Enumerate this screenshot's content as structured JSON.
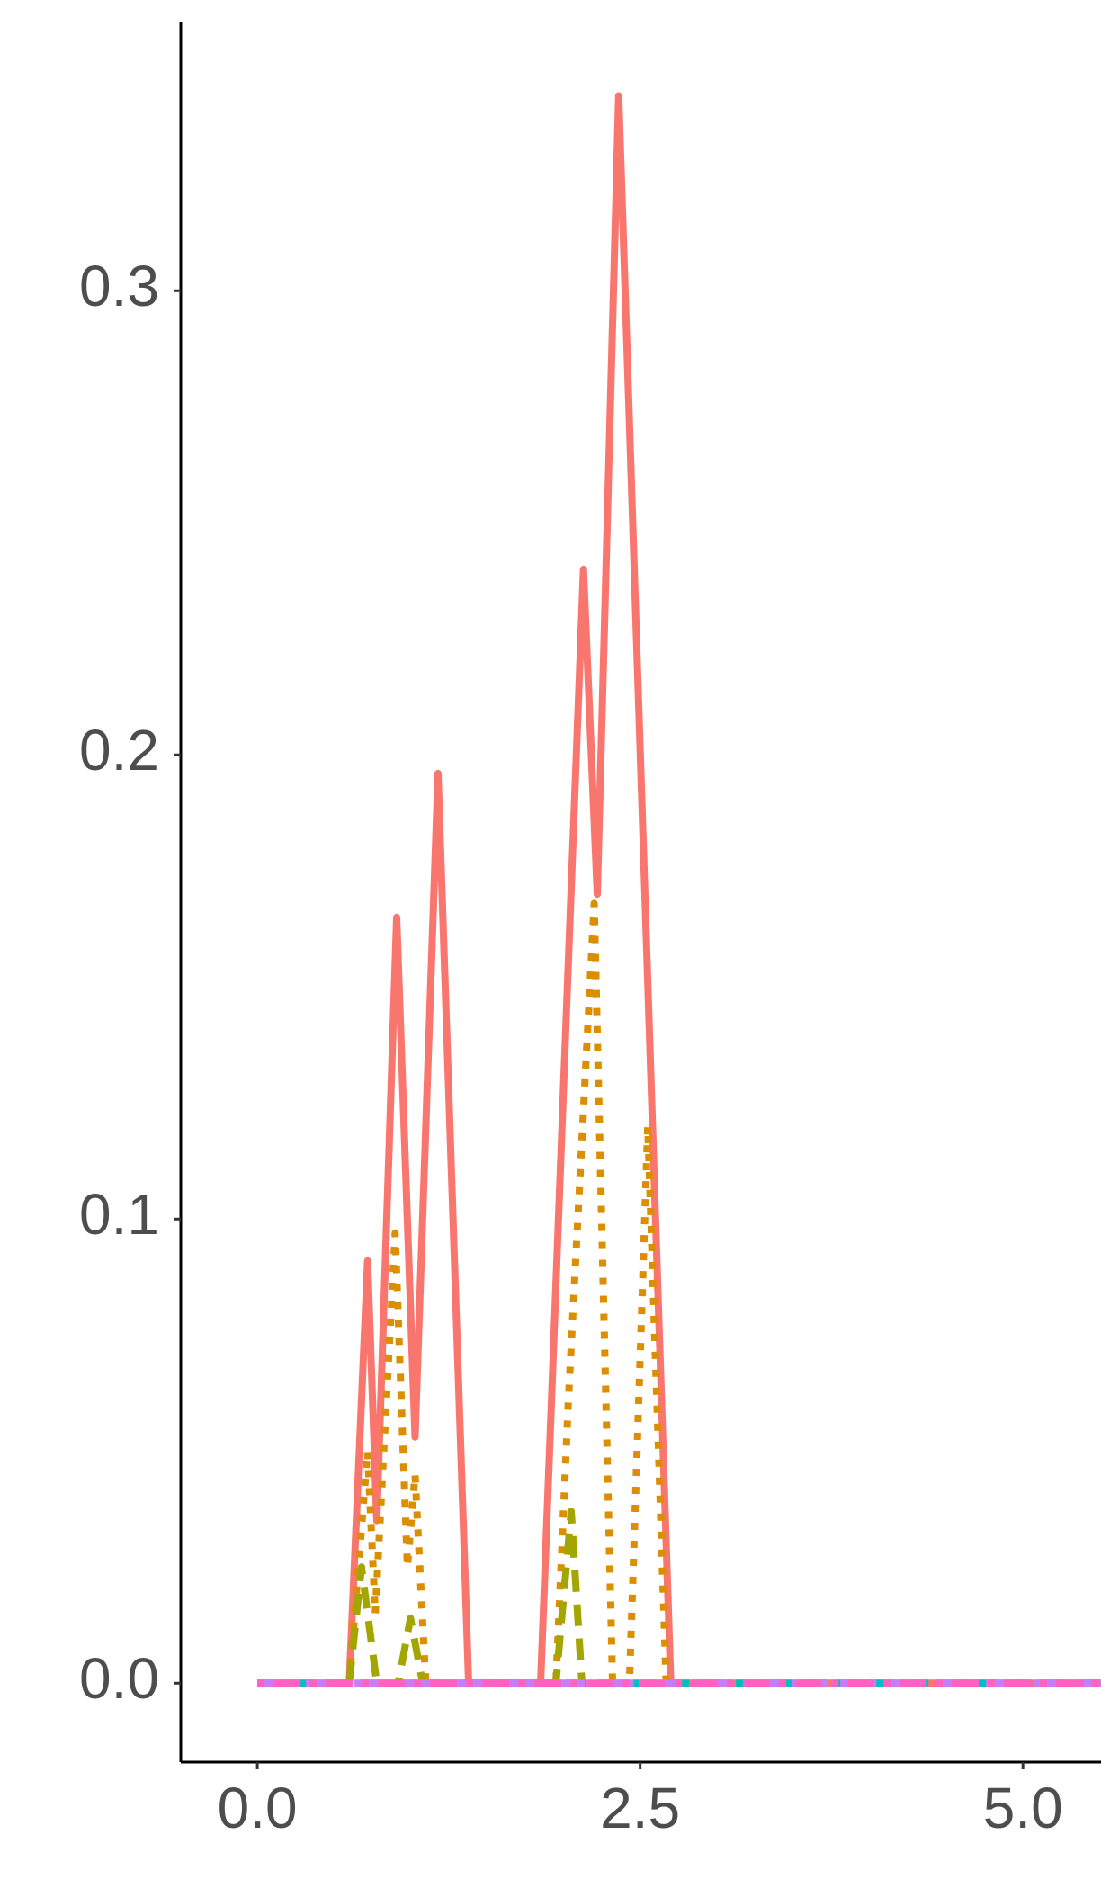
{
  "chart_data": {
    "type": "line",
    "xlim": [
      -0.5,
      5.51
    ],
    "ylim": [
      -0.017,
      0.358
    ],
    "xticks": [
      {
        "value": 0,
        "label": "0.0"
      },
      2.5,
      {
        "value": 5,
        "label": "5.0"
      }
    ],
    "yticks": [
      {
        "value": 0,
        "label": "0.0"
      },
      0.1,
      0.2,
      0.3
    ],
    "series": [
      {
        "color": "#F8766D",
        "dash": "solid",
        "x": [
          0,
          0.6,
          0.72,
          0.78,
          0.91,
          1.03,
          1.18,
          1.38,
          1.85,
          2.13,
          2.22,
          2.36,
          2.7,
          5.51
        ],
        "values": [
          0,
          0,
          0.091,
          0.035,
          0.165,
          0.053,
          0.196,
          0,
          0,
          0.24,
          0.17,
          0.342,
          0,
          0
        ]
      },
      {
        "color": "#DB8E00",
        "dash": "dotted",
        "x": [
          0.6,
          0.72,
          0.77,
          0.9,
          0.98,
          1.03,
          1.1,
          1.95,
          2.03,
          2.2,
          2.32,
          2.43,
          2.55,
          2.67
        ],
        "values": [
          0,
          0.05,
          0.015,
          0.097,
          0.025,
          0.045,
          0,
          0,
          0.06,
          0.168,
          0,
          0,
          0.12,
          0
        ]
      },
      {
        "color": "#A3A500",
        "dash": "dashed",
        "x": [
          0.6,
          0.68,
          0.78,
          0.92,
          1.0,
          1.08,
          1.95,
          2.05,
          2.12
        ],
        "values": [
          0,
          0.025,
          0,
          0,
          0.014,
          0,
          0,
          0.037,
          0
        ]
      },
      {
        "color": "#00BFC4",
        "dash": "dashed",
        "x": [
          0,
          5.51
        ],
        "values": [
          0,
          0
        ]
      },
      {
        "color": "#C77CFF",
        "dash": "longdash",
        "x": [
          0,
          5.51
        ],
        "values": [
          0,
          0
        ]
      },
      {
        "color": "#FF61C3",
        "dash": "dotdash",
        "x": [
          0,
          5.51
        ],
        "values": [
          0,
          0
        ]
      }
    ]
  }
}
